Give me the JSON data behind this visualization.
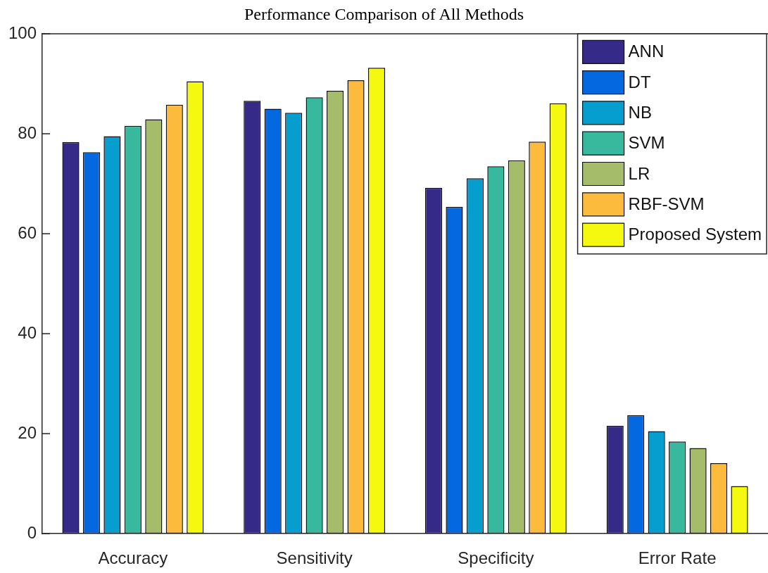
{
  "chart_data": {
    "type": "bar",
    "title": "Performance Comparison of All Methods",
    "categories": [
      "Accuracy",
      "Sensitivity",
      "Specificity",
      "Error Rate"
    ],
    "series": [
      {
        "name": "ANN",
        "color": "#352a87",
        "values": [
          78.3,
          86.6,
          69.2,
          21.6
        ]
      },
      {
        "name": "DT",
        "color": "#0469e1",
        "values": [
          76.3,
          85.0,
          65.4,
          23.7
        ]
      },
      {
        "name": "NB",
        "color": "#069dcf",
        "values": [
          79.5,
          84.2,
          71.1,
          20.5
        ]
      },
      {
        "name": "SVM",
        "color": "#38b89c",
        "values": [
          81.6,
          87.3,
          73.5,
          18.4
        ]
      },
      {
        "name": "LR",
        "color": "#a5bd6a",
        "values": [
          82.9,
          88.6,
          74.7,
          17.1
        ]
      },
      {
        "name": "RBF-SVM",
        "color": "#fcbb3d",
        "values": [
          85.8,
          90.7,
          78.4,
          14.1
        ]
      },
      {
        "name": "Proposed System",
        "color": "#f5f90f",
        "values": [
          90.5,
          93.2,
          86.1,
          9.5
        ]
      }
    ],
    "ylim": [
      0,
      100
    ],
    "yticks": [
      0,
      20,
      40,
      60,
      80,
      100
    ],
    "legend": "top right"
  }
}
